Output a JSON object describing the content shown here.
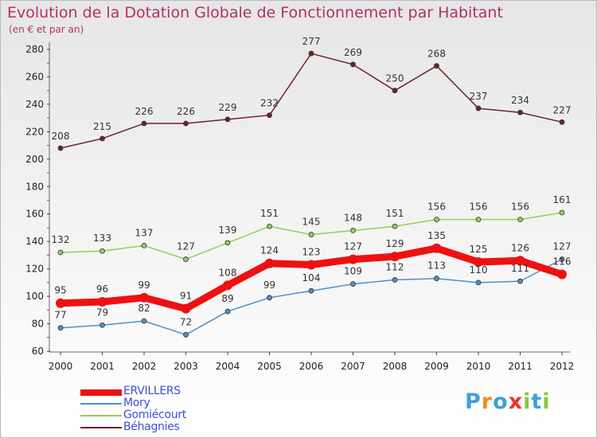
{
  "title": "Evolution de la Dotation Globale de Fonctionnement par Habitant",
  "subtitle": "(en € et par an)",
  "logo": {
    "text": "Proxiti",
    "letters": [
      "P",
      "r",
      "o",
      "x",
      "i",
      "t",
      "i"
    ],
    "colors": [
      "#3fa0d8",
      "#f08c24",
      "#3fa0d8",
      "#e8332a",
      "#8cc63f",
      "#3fa0d8",
      "#8cc63f"
    ]
  },
  "chart_data": {
    "type": "line",
    "categories": [
      "2000",
      "2001",
      "2002",
      "2003",
      "2004",
      "2005",
      "2006",
      "2007",
      "2008",
      "2009",
      "2010",
      "2011",
      "2012"
    ],
    "ylim": [
      60,
      280
    ],
    "yticks": [
      60,
      80,
      100,
      120,
      140,
      160,
      180,
      200,
      220,
      240,
      260,
      280
    ],
    "grid": false,
    "legend": "bottom-left",
    "series": [
      {
        "name": "ERVILLERS",
        "color": "#ee1111",
        "values": [
          95,
          96,
          99,
          91,
          108,
          124,
          123,
          127,
          129,
          135,
          125,
          126,
          116
        ]
      },
      {
        "name": "Mory",
        "color": "#4f90c8",
        "values": [
          77,
          79,
          82,
          72,
          89,
          99,
          104,
          109,
          112,
          113,
          110,
          111,
          127
        ]
      },
      {
        "name": "Gomiécourt",
        "color": "#8fd05a",
        "values": [
          132,
          133,
          137,
          127,
          139,
          151,
          145,
          148,
          151,
          156,
          156,
          156,
          161
        ]
      },
      {
        "name": "Béhagnies",
        "color": "#6e2228",
        "values": [
          208,
          215,
          226,
          226,
          229,
          232,
          277,
          269,
          250,
          268,
          237,
          234,
          227
        ]
      }
    ]
  }
}
